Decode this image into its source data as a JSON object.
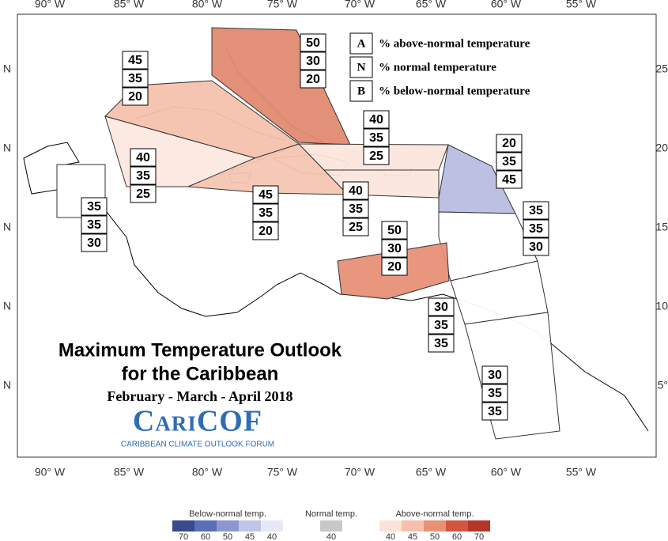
{
  "title": "Maximum Temperature Outlook",
  "title_line2": "for the Caribbean",
  "season": "February - March - April 2018",
  "logo": {
    "name": "CariCOF",
    "subtitle": "CARIBBEAN CLIMATE OUTLOOK FORUM"
  },
  "key": [
    {
      "letter": "A",
      "text": "% above-normal temperature"
    },
    {
      "letter": "N",
      "text": "% normal temperature"
    },
    {
      "letter": "B",
      "text": "% below-normal temperature"
    }
  ],
  "lon_labels": [
    "90° W",
    "85° W",
    "80° W",
    "75° W",
    "70° W",
    "65° W",
    "60° W",
    "55° W"
  ],
  "lat_labels_left": [
    "N",
    "N",
    "N",
    "N",
    "N"
  ],
  "lat_labels_right": [
    "25",
    "20",
    "15",
    "10",
    "5°"
  ],
  "zones": [
    {
      "color": "#e08a70",
      "values": [
        50,
        30,
        20
      ]
    },
    {
      "color": "#f4c2ae",
      "values": [
        45,
        35,
        20
      ]
    },
    {
      "color": "#fce8e0",
      "values": [
        40,
        35,
        25
      ]
    },
    {
      "color": "#f5c6b3",
      "values": [
        45,
        35,
        20
      ]
    },
    {
      "color": "#fce6dd",
      "values": [
        40,
        35,
        25
      ]
    },
    {
      "color": "#fce6dd",
      "values": [
        40,
        35,
        25
      ]
    },
    {
      "color": "#b8bde2",
      "values": [
        20,
        35,
        45
      ]
    },
    {
      "color": "#ffffff",
      "values": [
        35,
        35,
        30
      ]
    },
    {
      "color": "#ffffff",
      "values": [
        35,
        35,
        30
      ]
    },
    {
      "color": "#e89077",
      "values": [
        50,
        30,
        20
      ]
    },
    {
      "color": "#ffffff",
      "values": [
        30,
        35,
        35
      ]
    },
    {
      "color": "#ffffff",
      "values": [
        30,
        35,
        35
      ]
    }
  ],
  "colorbar": [
    {
      "label": "Below-normal temp.",
      "bins": [
        {
          "value": 70,
          "color": "#3a4a8c"
        },
        {
          "value": 60,
          "color": "#5a6fb8"
        },
        {
          "value": 50,
          "color": "#8c97d0"
        },
        {
          "value": 45,
          "color": "#bfc5e6"
        },
        {
          "value": 40,
          "color": "#e6e8f5"
        }
      ]
    },
    {
      "label": "Normal temp.",
      "bins": [
        {
          "value": 40,
          "color": "#c8c8c8"
        }
      ]
    },
    {
      "label": "Above-normal temp.",
      "bins": [
        {
          "value": 40,
          "color": "#fbe3da"
        },
        {
          "value": 45,
          "color": "#f6c0ad"
        },
        {
          "value": 50,
          "color": "#ea9077"
        },
        {
          "value": 60,
          "color": "#d1563f"
        },
        {
          "value": 70,
          "color": "#b5352a"
        }
      ]
    }
  ]
}
